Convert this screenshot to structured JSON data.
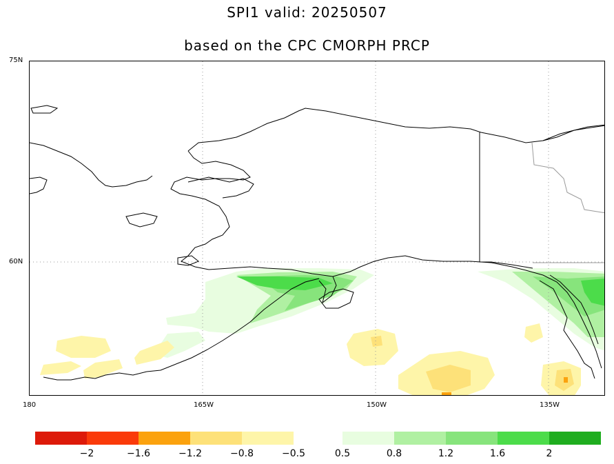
{
  "title": "SPI1   valid: 20250507",
  "subtitle": "based on the CPC CMORPH PRCP",
  "lat_labels": [
    "75N",
    "60N"
  ],
  "lon_labels": [
    "180",
    "165W",
    "150W",
    "135W"
  ],
  "colorbar": {
    "dry": {
      "colors": [
        "#dd1a0a",
        "#fa3a0a",
        "#fba20e",
        "#fde179",
        "#fef5a9"
      ],
      "labels": [
        "−2",
        "−1.6",
        "−1.2",
        "−0.8",
        "−0.5"
      ]
    },
    "wet": {
      "colors": [
        "#e8fde0",
        "#b0f0a2",
        "#87e47c",
        "#4cdc4a",
        "#1fad1f"
      ],
      "labels": [
        "0.5",
        "0.8",
        "1.2",
        "1.6",
        "2"
      ]
    }
  },
  "map": {
    "region": "Alaska",
    "projection": "lat-lon",
    "lon_range": [
      -180,
      -130
    ],
    "lat_range": [
      46,
      75
    ],
    "gridlines": "dotted"
  }
}
